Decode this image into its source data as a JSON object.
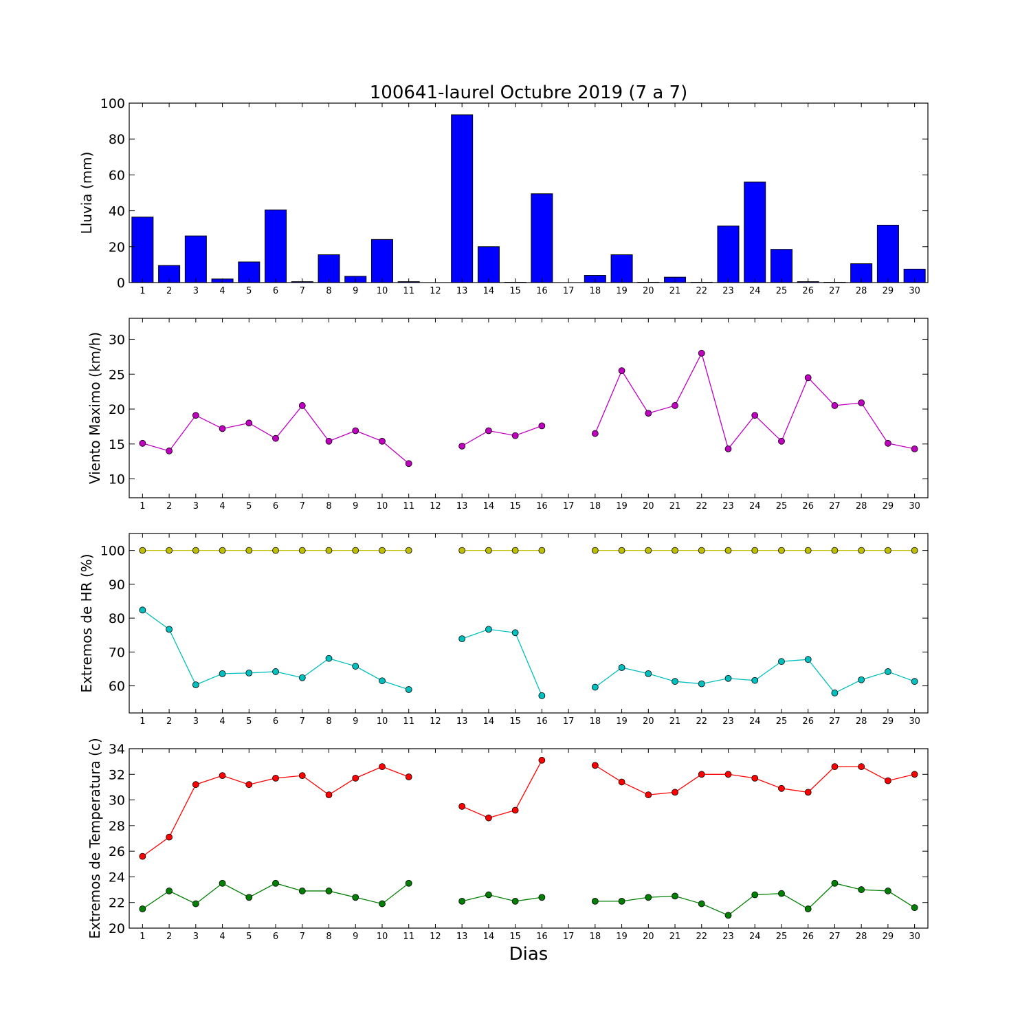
{
  "chart_data": [
    {
      "type": "bar",
      "title": "100641-laurel Octubre 2019  (7 a 7)",
      "xlabel": "",
      "ylabel": "Lluvia (mm)",
      "x": [
        1,
        2,
        3,
        4,
        5,
        6,
        7,
        8,
        9,
        10,
        11,
        12,
        13,
        14,
        15,
        16,
        17,
        18,
        19,
        20,
        21,
        22,
        23,
        24,
        25,
        26,
        27,
        28,
        29,
        30
      ],
      "ylim": [
        0,
        100
      ],
      "yticks": [
        0,
        20,
        40,
        60,
        80,
        100
      ],
      "grid": false,
      "series": [
        {
          "color": "#0000ff",
          "values": [
            36.5,
            9.5,
            26,
            2,
            11.5,
            40.5,
            0.5,
            15.5,
            3.5,
            24,
            0.5,
            null,
            93.5,
            20,
            0.2,
            49.5,
            null,
            4,
            15.5,
            0.2,
            3,
            0.2,
            31.5,
            56,
            18.5,
            0.5,
            0.2,
            10.5,
            32,
            7.5
          ]
        }
      ]
    },
    {
      "type": "line",
      "title": "",
      "xlabel": "",
      "ylabel": "Viento Maximo (km/h)",
      "x": [
        1,
        2,
        3,
        4,
        5,
        6,
        7,
        8,
        9,
        10,
        11,
        12,
        13,
        14,
        15,
        16,
        17,
        18,
        19,
        20,
        21,
        22,
        23,
        24,
        25,
        26,
        27,
        28,
        29,
        30
      ],
      "ylim": [
        7.3,
        33
      ],
      "yticks": [
        10,
        15,
        20,
        25,
        30
      ],
      "grid": false,
      "series": [
        {
          "color": "#bf00bf",
          "values": [
            15.1,
            14.0,
            19.1,
            17.2,
            18.0,
            15.8,
            20.5,
            15.4,
            16.9,
            15.4,
            12.2,
            null,
            14.7,
            16.9,
            16.2,
            17.6,
            null,
            16.5,
            25.5,
            19.4,
            20.5,
            28.0,
            14.3,
            19.1,
            15.4,
            24.5,
            20.5,
            20.9,
            15.1,
            14.3
          ]
        }
      ]
    },
    {
      "type": "line",
      "title": "",
      "xlabel": "",
      "ylabel": "Extremos de HR (%)",
      "x": [
        1,
        2,
        3,
        4,
        5,
        6,
        7,
        8,
        9,
        10,
        11,
        12,
        13,
        14,
        15,
        16,
        17,
        18,
        19,
        20,
        21,
        22,
        23,
        24,
        25,
        26,
        27,
        28,
        29,
        30
      ],
      "ylim": [
        52,
        105
      ],
      "yticks": [
        60,
        70,
        80,
        90,
        100
      ],
      "grid": false,
      "series": [
        {
          "color": "#bfbf00",
          "values": [
            100,
            100,
            100,
            100,
            100,
            100,
            100,
            100,
            100,
            100,
            100,
            null,
            100,
            100,
            100,
            100,
            null,
            100,
            100,
            100,
            100,
            100,
            100,
            100,
            100,
            100,
            100,
            100,
            100,
            100
          ]
        },
        {
          "color": "#00bfbf",
          "values": [
            82.4,
            76.7,
            60.3,
            63.6,
            63.8,
            64.2,
            62.4,
            68.1,
            65.8,
            61.5,
            58.9,
            null,
            73.9,
            76.7,
            75.7,
            57.1,
            null,
            59.6,
            65.4,
            63.6,
            61.3,
            60.6,
            62.2,
            61.6,
            67.2,
            67.8,
            57.9,
            61.8,
            64.2,
            61.3
          ]
        }
      ]
    },
    {
      "type": "line",
      "title": "",
      "xlabel": "Dias",
      "ylabel": "Extremos de Temperatura (c)",
      "x": [
        1,
        2,
        3,
        4,
        5,
        6,
        7,
        8,
        9,
        10,
        11,
        12,
        13,
        14,
        15,
        16,
        17,
        18,
        19,
        20,
        21,
        22,
        23,
        24,
        25,
        26,
        27,
        28,
        29,
        30
      ],
      "ylim": [
        20,
        34
      ],
      "yticks": [
        20,
        22,
        24,
        26,
        28,
        30,
        32,
        34
      ],
      "grid": false,
      "series": [
        {
          "color": "#ff0000",
          "values": [
            25.6,
            27.1,
            31.2,
            31.9,
            31.2,
            31.7,
            31.9,
            30.4,
            31.7,
            32.6,
            31.8,
            null,
            29.5,
            28.6,
            29.2,
            33.1,
            null,
            32.7,
            31.4,
            30.4,
            30.6,
            32.0,
            32.0,
            31.7,
            30.9,
            30.6,
            32.6,
            32.6,
            31.5,
            32.0
          ]
        },
        {
          "color": "#007f00",
          "values": [
            21.5,
            22.9,
            21.9,
            23.5,
            22.4,
            23.5,
            22.9,
            22.9,
            22.4,
            21.9,
            23.5,
            null,
            22.1,
            22.6,
            22.1,
            22.4,
            null,
            22.1,
            22.1,
            22.4,
            22.5,
            21.9,
            21.0,
            22.6,
            22.7,
            21.5,
            23.5,
            23.0,
            22.9,
            21.6
          ]
        }
      ]
    }
  ]
}
